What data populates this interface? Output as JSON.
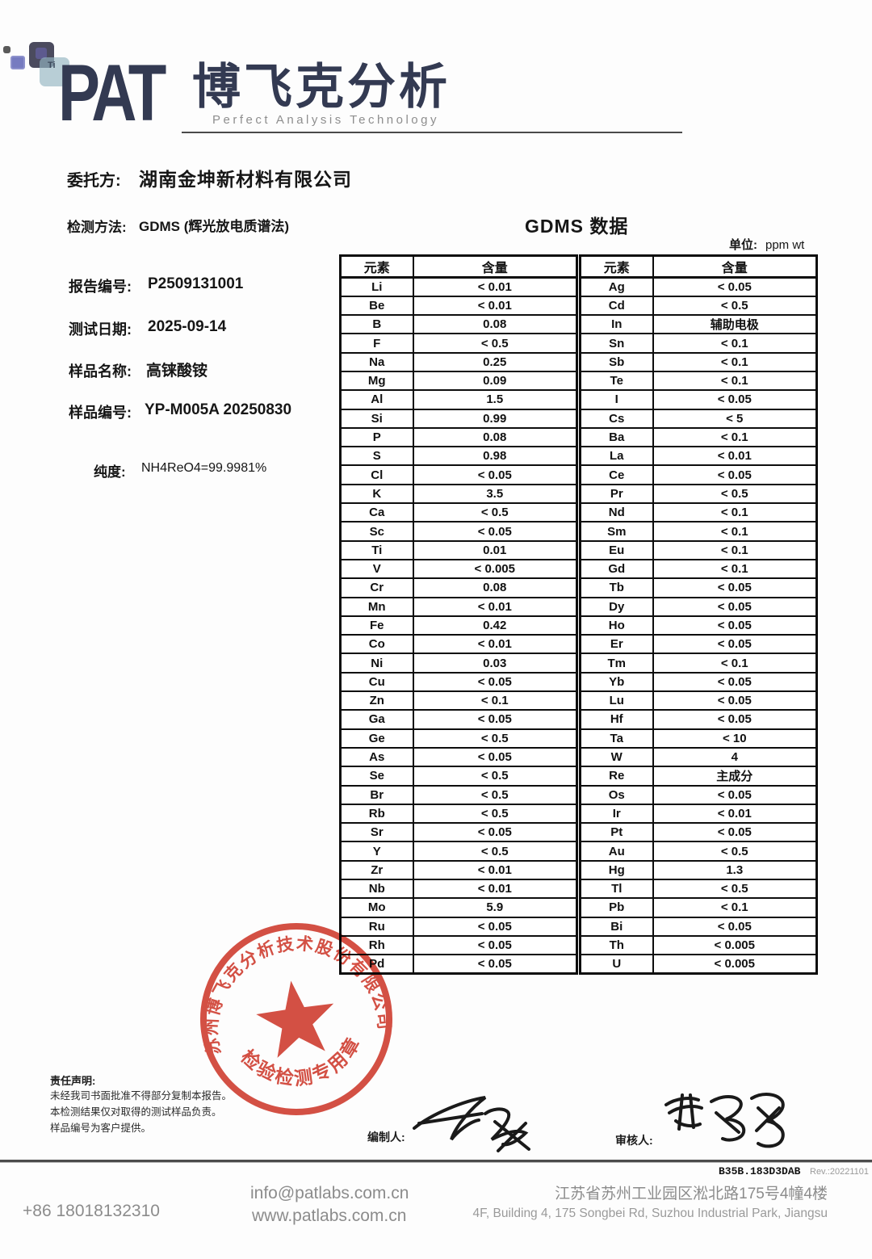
{
  "logo": {
    "acronym": "PAT",
    "cn_name": "博飞克分析",
    "subtitle": "Perfect Analysis Technology",
    "tile_label": "Ti",
    "brand_color": "#333a52"
  },
  "header": {
    "client_label": "委托方:",
    "client": "湖南金坤新材料有限公司",
    "method_label": "检测方法:",
    "method": "GDMS (辉光放电质谱法)",
    "data_title": "GDMS 数据",
    "unit_label": "单位:",
    "unit": "ppm wt"
  },
  "info": {
    "fields": [
      {
        "label": "报告编号:",
        "value": "P2509131001"
      },
      {
        "label": "测试日期:",
        "value": "2025-09-14"
      },
      {
        "label": "样品名称:",
        "value": "高铼酸铵"
      },
      {
        "label": "样品编号:",
        "value": "YP-M005A 20250830"
      }
    ],
    "purity_label": "纯度:",
    "purity_value": "NH4ReO4=99.9981%"
  },
  "tables": {
    "col_headers": [
      "元素",
      "含量"
    ],
    "left": [
      [
        "Li",
        "< 0.01"
      ],
      [
        "Be",
        "< 0.01"
      ],
      [
        "B",
        "0.08"
      ],
      [
        "F",
        "< 0.5"
      ],
      [
        "Na",
        "0.25"
      ],
      [
        "Mg",
        "0.09"
      ],
      [
        "Al",
        "1.5"
      ],
      [
        "Si",
        "0.99"
      ],
      [
        "P",
        "0.08"
      ],
      [
        "S",
        "0.98"
      ],
      [
        "Cl",
        "< 0.05"
      ],
      [
        "K",
        "3.5"
      ],
      [
        "Ca",
        "< 0.5"
      ],
      [
        "Sc",
        "< 0.05"
      ],
      [
        "Ti",
        "0.01"
      ],
      [
        "V",
        "< 0.005"
      ],
      [
        "Cr",
        "0.08"
      ],
      [
        "Mn",
        "< 0.01"
      ],
      [
        "Fe",
        "0.42"
      ],
      [
        "Co",
        "< 0.01"
      ],
      [
        "Ni",
        "0.03"
      ],
      [
        "Cu",
        "< 0.05"
      ],
      [
        "Zn",
        "< 0.1"
      ],
      [
        "Ga",
        "< 0.05"
      ],
      [
        "Ge",
        "< 0.5"
      ],
      [
        "As",
        "< 0.05"
      ],
      [
        "Se",
        "< 0.5"
      ],
      [
        "Br",
        "< 0.5"
      ],
      [
        "Rb",
        "< 0.5"
      ],
      [
        "Sr",
        "< 0.05"
      ],
      [
        "Y",
        "< 0.5"
      ],
      [
        "Zr",
        "< 0.01"
      ],
      [
        "Nb",
        "< 0.01"
      ],
      [
        "Mo",
        "5.9"
      ],
      [
        "Ru",
        "< 0.05"
      ],
      [
        "Rh",
        "< 0.05"
      ],
      [
        "Pd",
        "< 0.05"
      ]
    ],
    "right": [
      [
        "Ag",
        "< 0.05"
      ],
      [
        "Cd",
        "< 0.5"
      ],
      [
        "In",
        "辅助电极"
      ],
      [
        "Sn",
        "< 0.1"
      ],
      [
        "Sb",
        "< 0.1"
      ],
      [
        "Te",
        "< 0.1"
      ],
      [
        "I",
        "< 0.05"
      ],
      [
        "Cs",
        "< 5"
      ],
      [
        "Ba",
        "< 0.1"
      ],
      [
        "La",
        "< 0.01"
      ],
      [
        "Ce",
        "< 0.05"
      ],
      [
        "Pr",
        "< 0.5"
      ],
      [
        "Nd",
        "< 0.1"
      ],
      [
        "Sm",
        "< 0.1"
      ],
      [
        "Eu",
        "< 0.1"
      ],
      [
        "Gd",
        "< 0.1"
      ],
      [
        "Tb",
        "< 0.05"
      ],
      [
        "Dy",
        "< 0.05"
      ],
      [
        "Ho",
        "< 0.05"
      ],
      [
        "Er",
        "< 0.05"
      ],
      [
        "Tm",
        "< 0.1"
      ],
      [
        "Yb",
        "< 0.05"
      ],
      [
        "Lu",
        "< 0.05"
      ],
      [
        "Hf",
        "< 0.05"
      ],
      [
        "Ta",
        "< 10"
      ],
      [
        "W",
        "4"
      ],
      [
        "Re",
        "主成分"
      ],
      [
        "Os",
        "< 0.05"
      ],
      [
        "Ir",
        "< 0.01"
      ],
      [
        "Pt",
        "< 0.05"
      ],
      [
        "Au",
        "< 0.5"
      ],
      [
        "Hg",
        "1.3"
      ],
      [
        "Tl",
        "< 0.5"
      ],
      [
        "Pb",
        "< 0.1"
      ],
      [
        "Bi",
        "< 0.05"
      ],
      [
        "Th",
        "< 0.005"
      ],
      [
        "U",
        "< 0.005"
      ]
    ]
  },
  "stamp": {
    "arc_text": "苏州博飞克分析技术股份有限公司",
    "bottom_text": "检验检测专用章",
    "color": "#cf372a"
  },
  "disclaimer": {
    "title": "责任声明:",
    "lines": [
      "未经我司书面批准不得部分复制本报告。",
      "本检测结果仅对取得的测试样品负责。",
      "样品编号为客户提供。"
    ]
  },
  "signatures": {
    "preparer_label": "编制人:",
    "reviewer_label": "审核人:"
  },
  "doc_meta": {
    "code": "B35B.183D3DAB",
    "rev": "Rev.:20221101"
  },
  "footer": {
    "phone": "+86 18018132310",
    "email": "info@patlabs.com.cn",
    "website": "www.patlabs.com.cn",
    "address_cn": "江苏省苏州工业园区淞北路175号4幢4楼",
    "address_en": "4F, Building 4, 175 Songbei Rd, Suzhou Industrial Park, Jiangsu"
  }
}
